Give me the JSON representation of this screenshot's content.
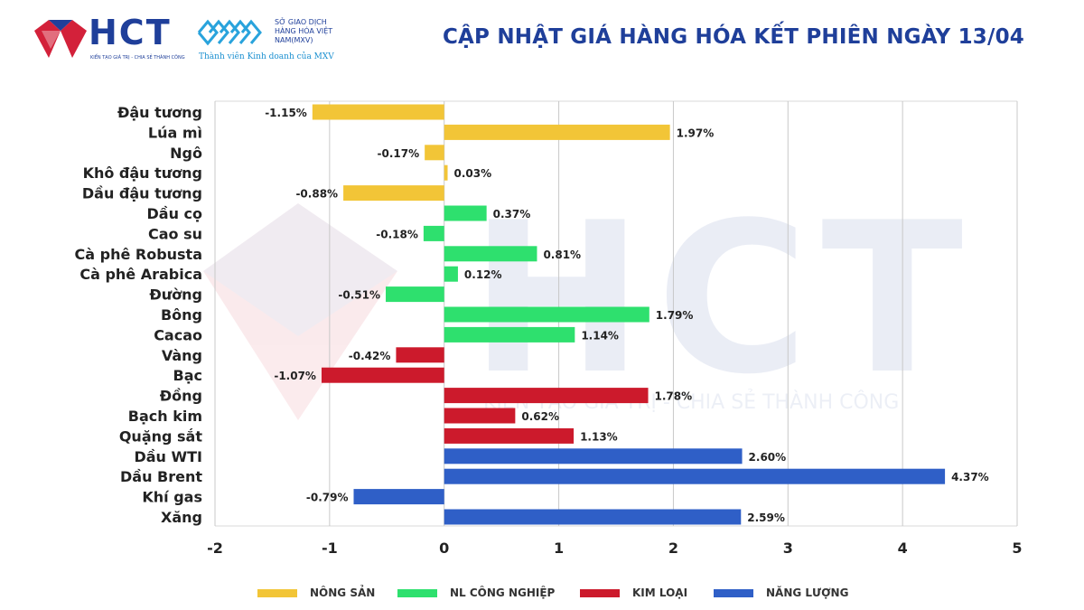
{
  "header": {
    "brand": "HCT",
    "brand_slogan": "KIẾN TẠO GIÁ TRỊ - CHIA SẺ THÀNH CÔNG",
    "exchange_line1": "SỞ GIAO DỊCH",
    "exchange_line2": "HÀNG HÓA VIỆT NAM(MXV)",
    "exchange_member": "Thành viên Kinh doanh của MXV",
    "title": "CẬP NHẬT GIÁ HÀNG HÓA KẾT PHIÊN NGÀY 13/04"
  },
  "watermark": {
    "text": "HCT",
    "slogan": "KIẾN TẠO GIÁ TRỊ - CHIA SẺ THÀNH CÔNG"
  },
  "colors": {
    "nong_san": "#f2c537",
    "nl_cong_nghiep": "#2ee06e",
    "kim_loai": "#cc1a2c",
    "nang_luong": "#2f5fc7",
    "brand_blue": "#1f3f9a",
    "brand_red": "#d3213a"
  },
  "chart_data": {
    "type": "bar",
    "orientation": "horizontal",
    "title": "",
    "xlabel": "",
    "ylabel": "",
    "xlim": [
      -2,
      5
    ],
    "xticks": [
      "-2",
      "-1",
      "0",
      "1",
      "2",
      "3",
      "4",
      "5"
    ],
    "grid": "vertical",
    "legend_position": "bottom",
    "groups": [
      {
        "key": "nong_san",
        "name": "NÔNG SẢN",
        "color": "#f2c537"
      },
      {
        "key": "nl_cong_nghiep",
        "name": "NL CÔNG NGHIỆP",
        "color": "#2ee06e"
      },
      {
        "key": "kim_loai",
        "name": "KIM LOẠI",
        "color": "#cc1a2c"
      },
      {
        "key": "nang_luong",
        "name": "NĂNG LƯỢNG",
        "color": "#2f5fc7"
      }
    ],
    "items": [
      {
        "name": "Đậu tương",
        "value": -1.15,
        "label": "-1.15%",
        "group": "nong_san"
      },
      {
        "name": "Lúa mì",
        "value": 1.97,
        "label": "1.97%",
        "group": "nong_san"
      },
      {
        "name": "Ngô",
        "value": -0.17,
        "label": "-0.17%",
        "group": "nong_san"
      },
      {
        "name": "Khô đậu tương",
        "value": 0.03,
        "label": "0.03%",
        "group": "nong_san"
      },
      {
        "name": "Dầu đậu tương",
        "value": -0.88,
        "label": "-0.88%",
        "group": "nong_san"
      },
      {
        "name": "Dầu cọ",
        "value": 0.37,
        "label": "0.37%",
        "group": "nl_cong_nghiep"
      },
      {
        "name": "Cao su",
        "value": -0.18,
        "label": "-0.18%",
        "group": "nl_cong_nghiep"
      },
      {
        "name": "Cà phê Robusta",
        "value": 0.81,
        "label": "0.81%",
        "group": "nl_cong_nghiep"
      },
      {
        "name": "Cà phê Arabica",
        "value": 0.12,
        "label": "0.12%",
        "group": "nl_cong_nghiep"
      },
      {
        "name": "Đường",
        "value": -0.51,
        "label": "-0.51%",
        "group": "nl_cong_nghiep"
      },
      {
        "name": "Bông",
        "value": 1.79,
        "label": "1.79%",
        "group": "nl_cong_nghiep"
      },
      {
        "name": "Cacao",
        "value": 1.14,
        "label": "1.14%",
        "group": "nl_cong_nghiep"
      },
      {
        "name": "Vàng",
        "value": -0.42,
        "label": "-0.42%",
        "group": "kim_loai"
      },
      {
        "name": "Bạc",
        "value": -1.07,
        "label": "-1.07%",
        "group": "kim_loai"
      },
      {
        "name": "Đồng",
        "value": 1.78,
        "label": "1.78%",
        "group": "kim_loai"
      },
      {
        "name": "Bạch kim",
        "value": 0.62,
        "label": "0.62%",
        "group": "kim_loai"
      },
      {
        "name": "Quặng sắt",
        "value": 1.13,
        "label": "1.13%",
        "group": "kim_loai"
      },
      {
        "name": "Dầu WTI",
        "value": 2.6,
        "label": "2.60%",
        "group": "nang_luong"
      },
      {
        "name": "Dầu Brent",
        "value": 4.37,
        "label": "4.37%",
        "group": "nang_luong"
      },
      {
        "name": "Khí gas",
        "value": -0.79,
        "label": "-0.79%",
        "group": "nang_luong"
      },
      {
        "name": "Xăng",
        "value": 2.59,
        "label": "2.59%",
        "group": "nang_luong"
      }
    ]
  }
}
